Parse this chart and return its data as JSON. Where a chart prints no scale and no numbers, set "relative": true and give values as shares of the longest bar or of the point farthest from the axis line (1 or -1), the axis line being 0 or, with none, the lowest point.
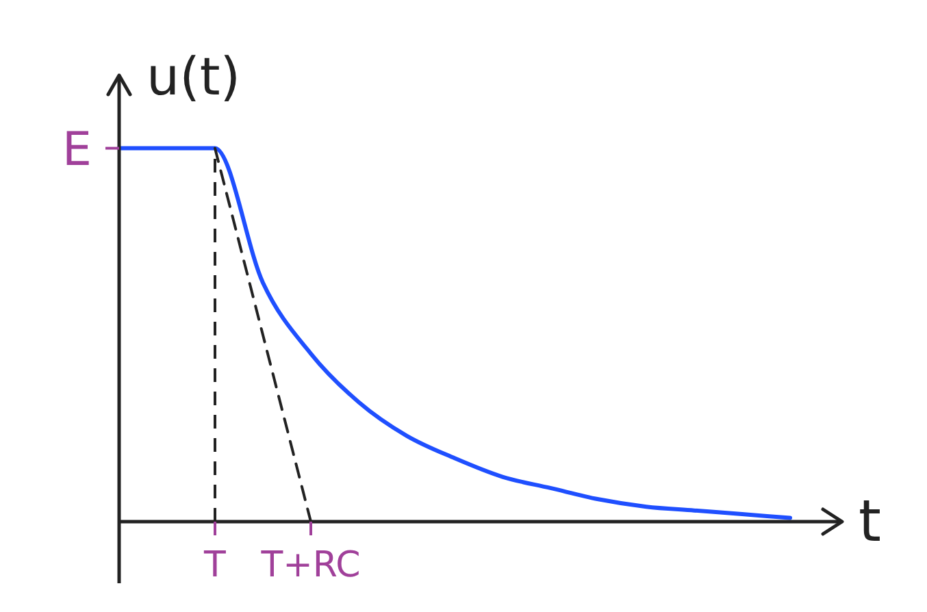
{
  "chart_data": {
    "type": "line",
    "xlabel": "t",
    "ylabel": "u(t)",
    "relative": true,
    "categories": [
      null,
      null,
      "T",
      null,
      "T+RC",
      null,
      null,
      null,
      null,
      null,
      null,
      null,
      null,
      null,
      null
    ],
    "annotations": [
      "E"
    ],
    "grid": false,
    "series": [
      {
        "color": "#1f4fff",
        "line_style": "solid",
        "values": [
          1,
          1,
          1,
          0.64,
          0.45,
          0.32,
          0.23,
          0.17,
          0.12,
          0.09,
          0.06,
          0.04,
          0.03,
          0.02,
          0.01
        ]
      },
      {
        "color": "#222222",
        "line_style": "dashed",
        "values": [
          null,
          null,
          1,
          0.5,
          0,
          null,
          null,
          null,
          null,
          null,
          null,
          null,
          null,
          null,
          null
        ]
      }
    ],
    "ref_lines": [
      {
        "axis": "x",
        "value": "T",
        "color": "#222222",
        "line_style": "dashed"
      }
    ]
  }
}
